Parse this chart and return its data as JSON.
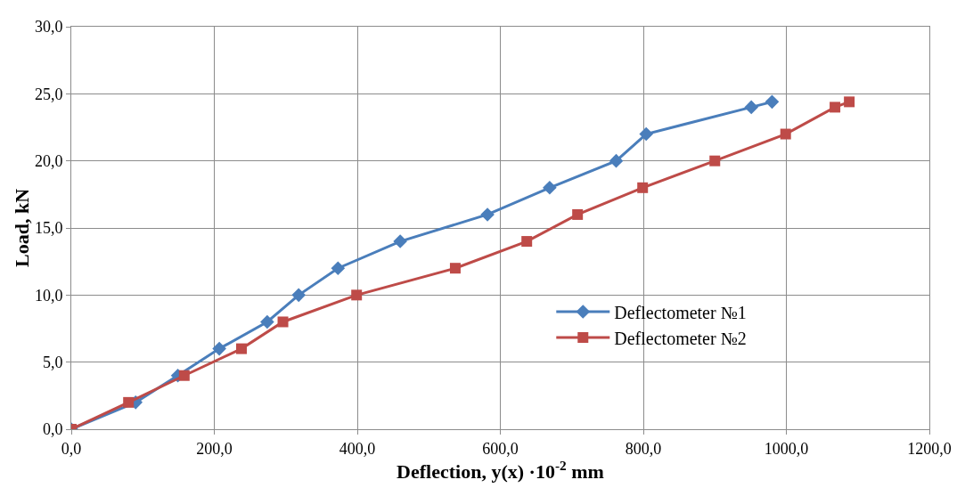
{
  "chart_data": {
    "type": "line",
    "xlabel": "Deflection, y(x) ·10$^{-2}$ mm",
    "ylabel": "Load, kN",
    "xlim": [
      0,
      1200
    ],
    "ylim": [
      0,
      30
    ],
    "xticks": [
      {
        "value": 0,
        "label": "0,0"
      },
      {
        "value": 200,
        "label": "200,0"
      },
      {
        "value": 400,
        "label": "400,0"
      },
      {
        "value": 600,
        "label": "600,0"
      },
      {
        "value": 800,
        "label": "800,0"
      },
      {
        "value": 1000,
        "label": "1000,0"
      },
      {
        "value": 1200,
        "label": "1200,0"
      }
    ],
    "yticks": [
      {
        "value": 0,
        "label": "0,0"
      },
      {
        "value": 5,
        "label": "5,0"
      },
      {
        "value": 10,
        "label": "10,0"
      },
      {
        "value": 15,
        "label": "15,0"
      },
      {
        "value": 20,
        "label": "20,0"
      },
      {
        "value": 25,
        "label": "25,0"
      },
      {
        "value": 30,
        "label": "30,0"
      }
    ],
    "grid": true,
    "legend": "right",
    "line_style": "solid",
    "series": [
      {
        "name": "Deflectometer №1",
        "color": "#4a7ebb",
        "marker": "diamond",
        "x": [
          0,
          90,
          149,
          207,
          274,
          318,
          373,
          460,
          582,
          669,
          762,
          804,
          951,
          980
        ],
        "values": [
          0,
          2,
          4,
          6,
          8,
          10,
          12,
          14,
          16,
          18,
          20,
          22,
          24,
          24.4
        ]
      },
      {
        "name": "Deflectometer №2",
        "color": "#be4b48",
        "marker": "square",
        "x": [
          0,
          80,
          158,
          238,
          296,
          399,
          537,
          637,
          708,
          799,
          900,
          999,
          1068,
          1088
        ],
        "values": [
          0,
          2,
          4,
          6,
          8,
          10,
          12,
          14,
          16,
          18,
          20,
          22,
          24,
          24.4
        ]
      }
    ]
  }
}
